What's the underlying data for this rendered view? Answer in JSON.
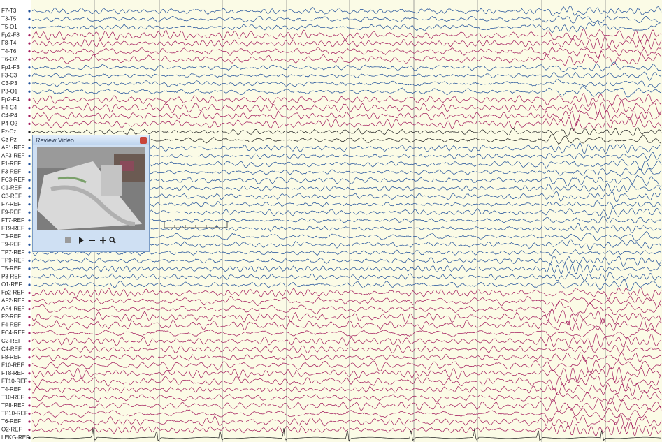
{
  "channels": [
    {
      "label": "F7-T3",
      "color": "#1f4f9a"
    },
    {
      "label": "T3-T5",
      "color": "#1f4f9a"
    },
    {
      "label": "T5-O1",
      "color": "#1f4f9a"
    },
    {
      "label": "Fp2-F8",
      "color": "#a3195b"
    },
    {
      "label": "F8-T4",
      "color": "#a3195b"
    },
    {
      "label": "T4-T6",
      "color": "#a3195b"
    },
    {
      "label": "T6-O2",
      "color": "#a3195b"
    },
    {
      "label": "Fp1-F3",
      "color": "#1f4f9a"
    },
    {
      "label": "F3-C3",
      "color": "#1f4f9a"
    },
    {
      "label": "C3-P3",
      "color": "#1f4f9a"
    },
    {
      "label": "P3-O1",
      "color": "#1f4f9a"
    },
    {
      "label": "Fp2-F4",
      "color": "#a3195b"
    },
    {
      "label": "F4-C4",
      "color": "#a3195b"
    },
    {
      "label": "C4-P4",
      "color": "#a3195b"
    },
    {
      "label": "P4-O2",
      "color": "#a3195b"
    },
    {
      "label": "Fz-Cz",
      "color": "#222222"
    },
    {
      "label": "Cz-Pz",
      "color": "#222222"
    },
    {
      "label": "AF1-REF",
      "color": "#1f4f9a"
    },
    {
      "label": "AF3-REF",
      "color": "#1f4f9a"
    },
    {
      "label": "F1-REF",
      "color": "#1f4f9a"
    },
    {
      "label": "F3-REF",
      "color": "#1f4f9a"
    },
    {
      "label": "FC3-REF",
      "color": "#1f4f9a"
    },
    {
      "label": "C1-REF",
      "color": "#1f4f9a"
    },
    {
      "label": "C3-REF",
      "color": "#1f4f9a"
    },
    {
      "label": "F7-REF",
      "color": "#1f4f9a"
    },
    {
      "label": "F9-REF",
      "color": "#1f4f9a"
    },
    {
      "label": "FT7-REF",
      "color": "#1f4f9a"
    },
    {
      "label": "FT9-REF",
      "color": "#1f4f9a"
    },
    {
      "label": "T3-REF",
      "color": "#1f4f9a"
    },
    {
      "label": "T9-REF",
      "color": "#1f4f9a"
    },
    {
      "label": "TP7-REF",
      "color": "#1f4f9a"
    },
    {
      "label": "TP9-REF",
      "color": "#1f4f9a"
    },
    {
      "label": "T5-REF",
      "color": "#1f4f9a"
    },
    {
      "label": "P3-REF",
      "color": "#1f4f9a"
    },
    {
      "label": "O1-REF",
      "color": "#1f4f9a"
    },
    {
      "label": "Fp2-REF",
      "color": "#a3195b"
    },
    {
      "label": "AF2-REF",
      "color": "#a3195b"
    },
    {
      "label": "AF4-REF",
      "color": "#a3195b"
    },
    {
      "label": "F2-REF",
      "color": "#a3195b"
    },
    {
      "label": "F4-REF",
      "color": "#a3195b"
    },
    {
      "label": "FC4-REF",
      "color": "#a3195b"
    },
    {
      "label": "C2-REF",
      "color": "#a3195b"
    },
    {
      "label": "C4-REF",
      "color": "#a3195b"
    },
    {
      "label": "F8-REF",
      "color": "#a3195b"
    },
    {
      "label": "F10-REF",
      "color": "#a3195b"
    },
    {
      "label": "FT8-REF",
      "color": "#a3195b"
    },
    {
      "label": "FT10-REF",
      "color": "#a3195b"
    },
    {
      "label": "T4-REF",
      "color": "#a3195b"
    },
    {
      "label": "T10-REF",
      "color": "#a3195b"
    },
    {
      "label": "TP8-REF",
      "color": "#a3195b"
    },
    {
      "label": "TP10-REF",
      "color": "#a3195b"
    },
    {
      "label": "T6-REF",
      "color": "#a3195b"
    },
    {
      "label": "O2-REF",
      "color": "#a3195b"
    },
    {
      "label": "LEKG-REF",
      "color": "#222222"
    }
  ],
  "video_window": {
    "title": "Review Video"
  }
}
